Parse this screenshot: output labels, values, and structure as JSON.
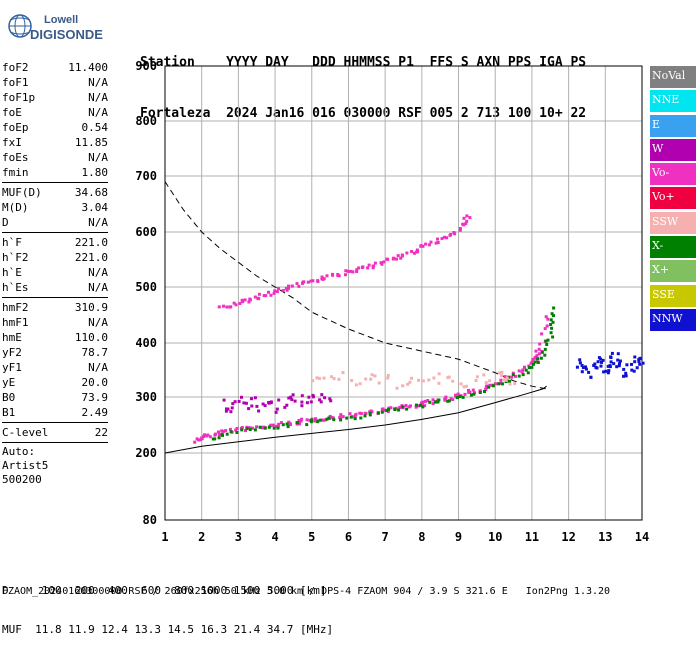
{
  "logo": {
    "line1": "Lowell",
    "line2": "DIGISONDE"
  },
  "header": {
    "row1": "Station    YYYY DAY   DDD HHMMSS P1  FFS S AXN PPS IGA PS",
    "row2": "Fortaleza  2024 Jan16 016 030000 RSF 005 2 713 100 10+ 22"
  },
  "params_groups": [
    [
      {
        "k": "foF2",
        "v": "11.400"
      },
      {
        "k": "foF1",
        "v": "N/A"
      },
      {
        "k": "foF1p",
        "v": "N/A"
      },
      {
        "k": "foE",
        "v": "N/A"
      },
      {
        "k": "foEp",
        "v": "0.54"
      },
      {
        "k": "fxI",
        "v": "11.85"
      },
      {
        "k": "foEs",
        "v": "N/A"
      },
      {
        "k": "fmin",
        "v": "1.80"
      }
    ],
    [
      {
        "k": "MUF(D)",
        "v": "34.68"
      },
      {
        "k": "M(D)",
        "v": "3.04"
      },
      {
        "k": "D",
        "v": "N/A"
      }
    ],
    [
      {
        "k": "h`F",
        "v": "221.0"
      },
      {
        "k": "h`F2",
        "v": "221.0"
      },
      {
        "k": "h`E",
        "v": "N/A"
      },
      {
        "k": "h`Es",
        "v": "N/A"
      }
    ],
    [
      {
        "k": "hmF2",
        "v": "310.9"
      },
      {
        "k": "hmF1",
        "v": "N/A"
      },
      {
        "k": "hmE",
        "v": "110.0"
      },
      {
        "k": "yF2",
        "v": "78.7"
      },
      {
        "k": "yF1",
        "v": "N/A"
      },
      {
        "k": "yE",
        "v": "20.0"
      },
      {
        "k": "B0",
        "v": "73.9"
      },
      {
        "k": "B1",
        "v": "2.49"
      }
    ],
    [
      {
        "k": "C-level",
        "v": "22"
      }
    ]
  ],
  "auto": {
    "l1": "Auto:",
    "l2": "Artist5",
    "l3": "500200"
  },
  "legend": [
    {
      "label": "NoVal",
      "color": "#808080"
    },
    {
      "label": "NNE",
      "color": "#00e5f0"
    },
    {
      "label": "E",
      "color": "#3aa0f0"
    },
    {
      "label": "W",
      "color": "#b000b0"
    },
    {
      "label": "Vo-",
      "color": "#f030c0"
    },
    {
      "label": "Vo+",
      "color": "#f00040"
    },
    {
      "label": "SSW",
      "color": "#f7b0b0"
    },
    {
      "label": "X-",
      "color": "#008000"
    },
    {
      "label": "X+",
      "color": "#80c060"
    },
    {
      "label": "SSE",
      "color": "#c8c800"
    },
    {
      "label": "NNW",
      "color": "#1010d0"
    }
  ],
  "muf_table": {
    "row1": "D     100  200  400  600  800 1000 1500 3000 [km]",
    "row2": "MUF  11.8 11.9 12.4 13.3 14.5 16.3 21.4 34.7 [MHz]"
  },
  "footer": "FZAOM_20240160300000.RSF / 260fx256h 50 kHz 5.0 km / DPS-4 FZAOM 904 / 3.9 S 321.6 E   Ion2Png 1.3.20",
  "chart_data": {
    "type": "scatter",
    "title": "",
    "xlabel": "",
    "ylabel": "",
    "xlim": [
      1,
      14
    ],
    "ylim": [
      80,
      900
    ],
    "x_ticks": [
      1,
      2,
      3,
      4,
      5,
      6,
      7,
      8,
      9,
      10,
      11,
      12,
      13,
      14
    ],
    "y_ticks": [
      80,
      200,
      300,
      400,
      500,
      600,
      700,
      800,
      900
    ],
    "grid": true,
    "legend_position": "right",
    "series": [
      {
        "name": "O-trace (lower)",
        "color": "#f030c0",
        "x": [
          1.85,
          2.0,
          2.5,
          3.0,
          3.5,
          4.0,
          4.5,
          5.0,
          5.5,
          6.0,
          6.5,
          7.0,
          7.5,
          8.0,
          8.5,
          9.0,
          9.5,
          10.0,
          10.5,
          11.0,
          11.2,
          11.4
        ],
        "y": [
          225,
          232,
          240,
          245,
          248,
          252,
          257,
          262,
          266,
          270,
          275,
          280,
          285,
          290,
          298,
          305,
          315,
          330,
          345,
          370,
          390,
          460
        ]
      },
      {
        "name": "X-trace (lower)",
        "color": "#008000",
        "x": [
          2.2,
          3.0,
          4.0,
          5.0,
          6.0,
          7.0,
          8.0,
          9.0,
          10.0,
          10.8,
          11.2,
          11.5,
          11.6
        ],
        "y": [
          228,
          242,
          250,
          258,
          266,
          276,
          288,
          302,
          325,
          350,
          375,
          420,
          470
        ]
      },
      {
        "name": "O-trace (upper)",
        "color": "#f030c0",
        "x": [
          2.5,
          3.0,
          3.5,
          4.0,
          4.5,
          5.0,
          5.5,
          6.0,
          6.5,
          7.0,
          7.5,
          8.0,
          8.5,
          9.0,
          9.3
        ],
        "y": [
          465,
          475,
          485,
          495,
          505,
          515,
          522,
          530,
          540,
          550,
          560,
          575,
          590,
          610,
          635
        ]
      },
      {
        "name": "Spread echoes",
        "color": "#b000b0",
        "x": [
          2.5,
          3.0,
          3.5,
          4.0,
          4.5,
          5.0,
          5.5
        ],
        "y": [
          285,
          290,
          290,
          285,
          295,
          300,
          305
        ]
      },
      {
        "name": "SSW echoes",
        "color": "#f7b0b0",
        "x": [
          5.0,
          6.0,
          7.0,
          8.0,
          9.0,
          10.0,
          10.5
        ],
        "y": [
          340,
          335,
          330,
          335,
          330,
          335,
          340
        ]
      },
      {
        "name": "NNW echoes",
        "color": "#1010d0",
        "x": [
          12.2,
          12.5,
          12.8,
          13.0,
          13.2,
          13.5,
          13.8,
          14.0
        ],
        "y": [
          360,
          345,
          370,
          355,
          380,
          350,
          365,
          375
        ]
      }
    ],
    "profile_curve": {
      "x": [
        1.0,
        2.0,
        3.0,
        4.0,
        5.0,
        6.0,
        7.0,
        8.0,
        9.0,
        10.0,
        10.8,
        11.3,
        11.4
      ],
      "y": [
        200,
        212,
        220,
        228,
        235,
        242,
        250,
        260,
        272,
        290,
        305,
        315,
        320
      ]
    },
    "dashed_curve": {
      "x": [
        1.0,
        1.5,
        2.0,
        2.5,
        3.0,
        3.5,
        4.0,
        4.5,
        5.0,
        5.5,
        6.0,
        7.0,
        8.0,
        9.0,
        10.0,
        10.5,
        11.0,
        11.4
      ],
      "y": [
        690,
        640,
        600,
        570,
        545,
        520,
        500,
        480,
        455,
        440,
        425,
        400,
        385,
        370,
        345,
        330,
        320,
        315
      ]
    }
  }
}
